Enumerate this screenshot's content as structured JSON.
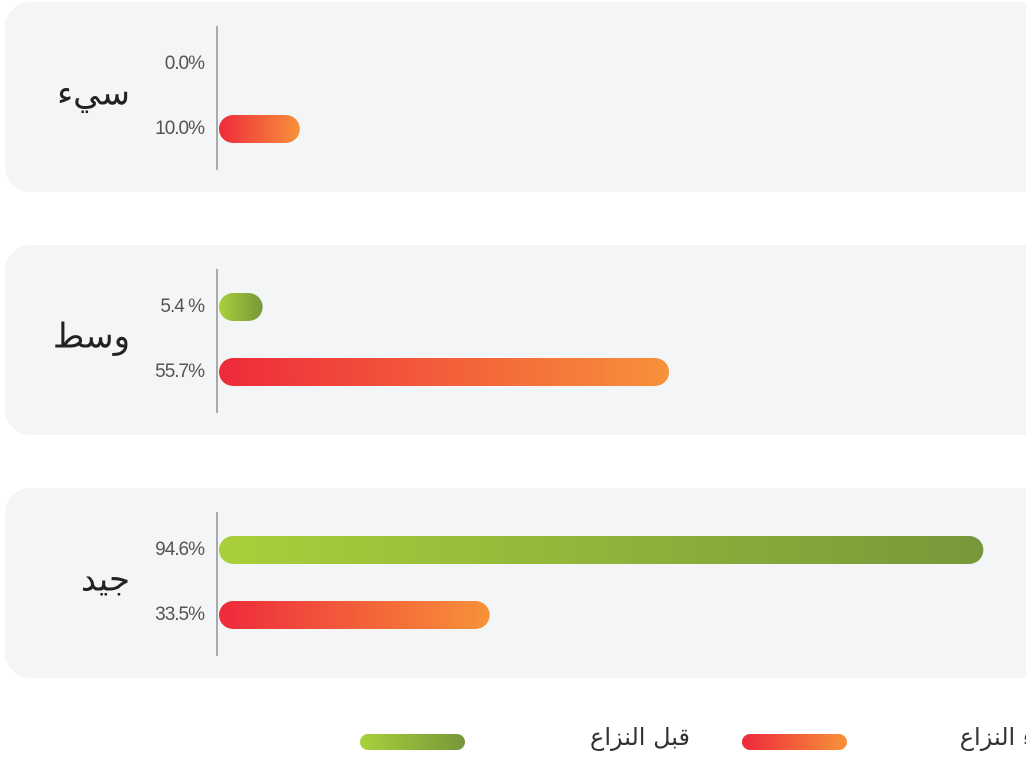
{
  "chart_data": {
    "type": "bar",
    "categories": [
      "سيء",
      "وسط",
      "جيد"
    ],
    "series": [
      {
        "name": "قبل النزاع",
        "color": [
          "#a8d03b",
          "#76983a"
        ],
        "values": [
          0.0,
          5.4,
          94.6
        ],
        "value_labels": [
          "0.0%",
          "5.4 %",
          "94.6%"
        ]
      },
      {
        "name": "أثناء النزاع",
        "color": [
          "#ee2a3b",
          "#f7923a"
        ],
        "values": [
          10.0,
          55.7,
          33.5
        ],
        "value_labels": [
          "10.0%",
          "55.7%",
          "33.5%"
        ]
      }
    ],
    "xlim": [
      0,
      100
    ]
  }
}
